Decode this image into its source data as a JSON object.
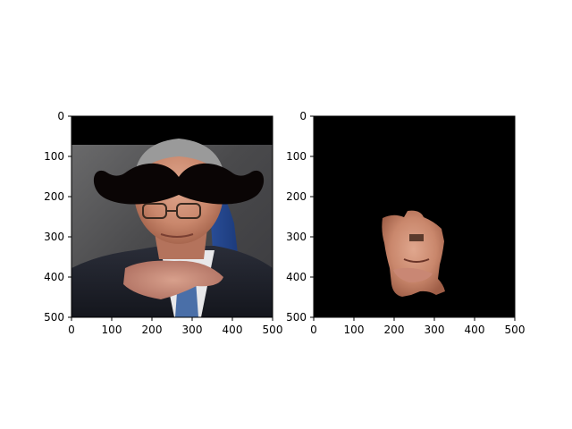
{
  "chart_data": [
    {
      "type": "image",
      "title": "",
      "xlabel": "",
      "ylabel": "",
      "xlim": [
        0,
        500
      ],
      "ylim": [
        500,
        0
      ],
      "xticks": [
        "0",
        "100",
        "200",
        "300",
        "400",
        "500"
      ],
      "yticks": [
        "0",
        "100",
        "200",
        "300",
        "400",
        "500"
      ],
      "content": "photo with black bar at top and overlaid mustache",
      "grid": false
    },
    {
      "type": "image",
      "title": "",
      "xlabel": "",
      "ylabel": "",
      "xlim": [
        0,
        500
      ],
      "ylim": [
        500,
        0
      ],
      "xticks": [
        "0",
        "100",
        "200",
        "300",
        "400",
        "500"
      ],
      "yticks": [
        "0",
        "100",
        "200",
        "300",
        "400",
        "500"
      ],
      "content": "masked face region on black background",
      "grid": false
    }
  ]
}
